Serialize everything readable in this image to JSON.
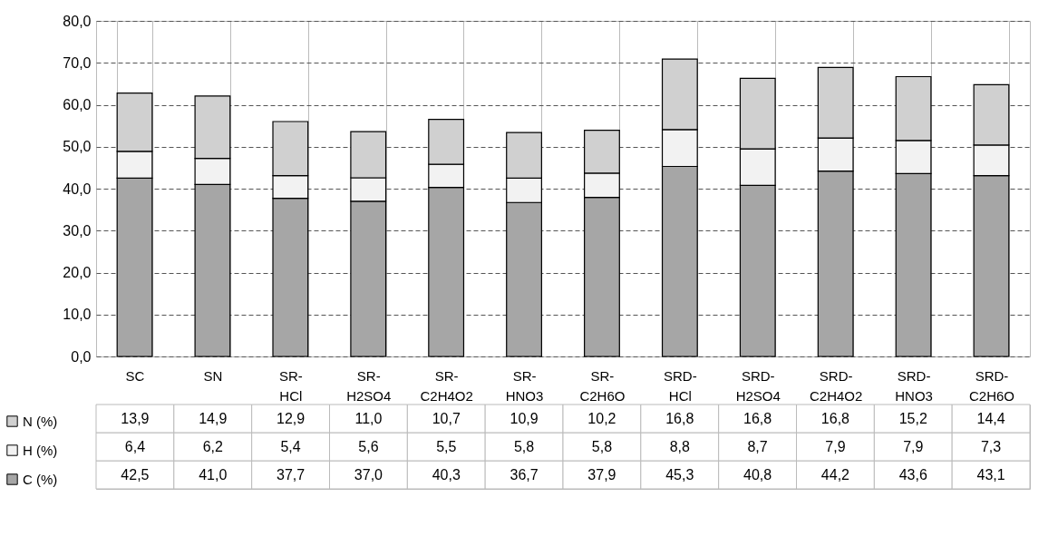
{
  "chart_data": {
    "type": "bar",
    "stacked": true,
    "categories": [
      "SC",
      "SN",
      "SR-HCl",
      "SR-H2SO4",
      "SR-C2H4O2",
      "SR-HNO3",
      "SR-C2H6O",
      "SRD-HCl",
      "SRD-H2SO4",
      "SRD-C2H4O2",
      "SRD-HNO3",
      "SRD-C2H6O"
    ],
    "series": [
      {
        "name": "C (%)",
        "color": "#a6a6a6",
        "values": [
          42.5,
          41.0,
          37.7,
          37.0,
          40.3,
          36.7,
          37.9,
          45.3,
          40.8,
          44.2,
          43.6,
          43.1
        ],
        "value_labels": [
          "42,5",
          "41,0",
          "37,7",
          "37,0",
          "40,3",
          "36,7",
          "37,9",
          "45,3",
          "40,8",
          "44,2",
          "43,6",
          "43,1"
        ]
      },
      {
        "name": "H (%)",
        "color": "#f2f2f2",
        "values": [
          6.4,
          6.2,
          5.4,
          5.6,
          5.5,
          5.8,
          5.8,
          8.8,
          8.7,
          7.9,
          7.9,
          7.3
        ],
        "value_labels": [
          "6,4",
          "6,2",
          "5,4",
          "5,6",
          "5,5",
          "5,8",
          "5,8",
          "8,8",
          "8,7",
          "7,9",
          "7,9",
          "7,3"
        ]
      },
      {
        "name": "N (%)",
        "color": "#d0d0d0",
        "values": [
          13.9,
          14.9,
          12.9,
          11.0,
          10.7,
          10.9,
          10.2,
          16.8,
          16.8,
          16.8,
          15.2,
          14.4
        ],
        "value_labels": [
          "13,9",
          "14,9",
          "12,9",
          "11,0",
          "10,7",
          "10,9",
          "10,2",
          "16,8",
          "16,8",
          "16,8",
          "15,2",
          "14,4"
        ]
      }
    ],
    "ylim": [
      0,
      80
    ],
    "yticks": [
      {
        "value": 0,
        "label": "0,0"
      },
      {
        "value": 10,
        "label": "10,0"
      },
      {
        "value": 20,
        "label": "20,0"
      },
      {
        "value": 30,
        "label": "30,0"
      },
      {
        "value": 40,
        "label": "40,0"
      },
      {
        "value": 50,
        "label": "50,0"
      },
      {
        "value": 60,
        "label": "60,0"
      },
      {
        "value": 70,
        "label": "70,0"
      },
      {
        "value": 80,
        "label": "80,0"
      }
    ],
    "grid": "y",
    "legend": "bottom left"
  }
}
